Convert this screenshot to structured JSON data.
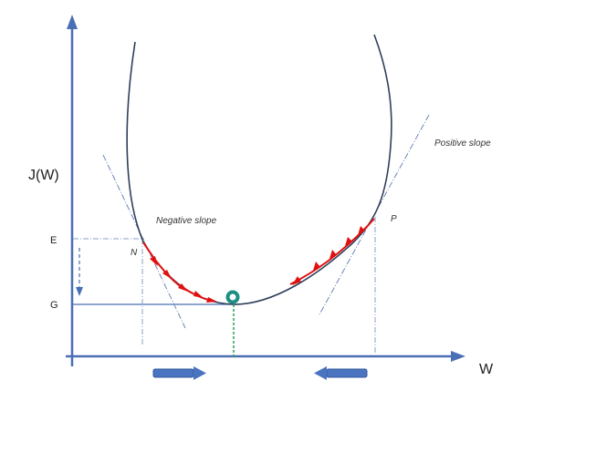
{
  "labels": {
    "y_axis": "J(W)",
    "x_axis": "W",
    "e_tick": "E",
    "g_tick": "G",
    "n_point": "N",
    "p_point": "P",
    "negative_slope": "Negative slope",
    "positive_slope": "Positive slope"
  },
  "colors": {
    "axis": "#4a6fb5",
    "curve": "#2f3f5a",
    "tangent": "#6f86b8",
    "guide": "#8aa0c8",
    "descent": "#e01010",
    "minimum": "#1d8f82",
    "minimum_guide": "#23a35a",
    "direction_arrow": "#4a74c0"
  },
  "icons": {
    "minimum_marker": "ring-icon",
    "step_arrow": "arrowhead-icon",
    "direction_arrow": "block-arrow-icon"
  }
}
